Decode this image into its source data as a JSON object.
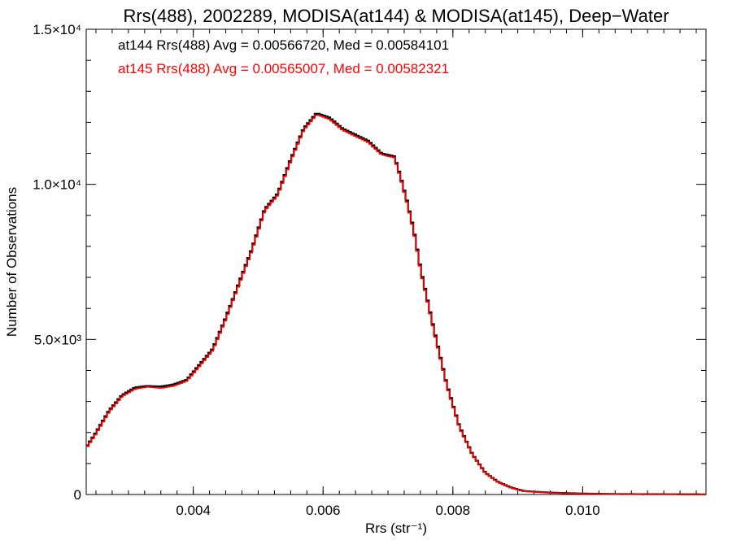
{
  "chart_data": {
    "type": "line",
    "style": "step-histogram",
    "title": "Rrs(488), 2002289, MODISA(at144) & MODISA(at145), Deep−Water",
    "xlabel": "Rrs (str⁻¹)",
    "ylabel": "Number of Observations",
    "xlim": [
      0.00235,
      0.0119
    ],
    "ylim": [
      0,
      15000
    ],
    "x_ticks": [
      {
        "value": 0.004,
        "label": "0.004"
      },
      {
        "value": 0.006,
        "label": "0.006"
      },
      {
        "value": 0.008,
        "label": "0.008"
      },
      {
        "value": 0.01,
        "label": "0.010"
      }
    ],
    "y_ticks": [
      {
        "value": 0,
        "label": "0"
      },
      {
        "value": 5000,
        "label": "5.0×10³"
      },
      {
        "value": 10000,
        "label": "1.0×10⁴"
      },
      {
        "value": 15000,
        "label": "1.5×10⁴"
      }
    ],
    "grid": false,
    "legend_position": "top-left",
    "legend": [
      "at144 Rrs(488) Avg = 0.00566720, Med = 0.00584101",
      "at145 Rrs(488) Avg = 0.00565007, Med = 0.00582321"
    ],
    "x": [
      0.00235,
      0.0025,
      0.0027,
      0.0029,
      0.0031,
      0.0033,
      0.0035,
      0.0037,
      0.0039,
      0.0041,
      0.0043,
      0.0045,
      0.0047,
      0.0049,
      0.0051,
      0.0053,
      0.0055,
      0.0057,
      0.0059,
      0.0061,
      0.0063,
      0.0065,
      0.0067,
      0.0069,
      0.0071,
      0.0072,
      0.0073,
      0.0074,
      0.0075,
      0.0077,
      0.0079,
      0.0081,
      0.0083,
      0.0085,
      0.0087,
      0.0089,
      0.0091,
      0.0095,
      0.01,
      0.0105,
      0.011,
      0.0119
    ],
    "series": [
      {
        "name": "at144",
        "color": "#000000",
        "values": [
          1520,
          2000,
          2700,
          3200,
          3450,
          3500,
          3480,
          3550,
          3700,
          4200,
          4700,
          5700,
          6800,
          7900,
          9200,
          9700,
          10800,
          11800,
          12300,
          12150,
          11800,
          11600,
          11400,
          11000,
          10900,
          10200,
          9400,
          8500,
          7300,
          5400,
          3600,
          2200,
          1300,
          700,
          400,
          220,
          110,
          60,
          30,
          15,
          10,
          5
        ]
      },
      {
        "name": "at145",
        "color": "#ff0000",
        "values": [
          1490,
          1960,
          2660,
          3160,
          3400,
          3470,
          3430,
          3500,
          3660,
          4150,
          4650,
          5650,
          6750,
          7850,
          9150,
          9650,
          10750,
          11750,
          12250,
          12100,
          11750,
          11550,
          11350,
          10960,
          10860,
          10150,
          9350,
          8450,
          7250,
          5350,
          3560,
          2170,
          1280,
          690,
          390,
          210,
          105,
          55,
          28,
          14,
          9,
          5
        ]
      }
    ]
  }
}
